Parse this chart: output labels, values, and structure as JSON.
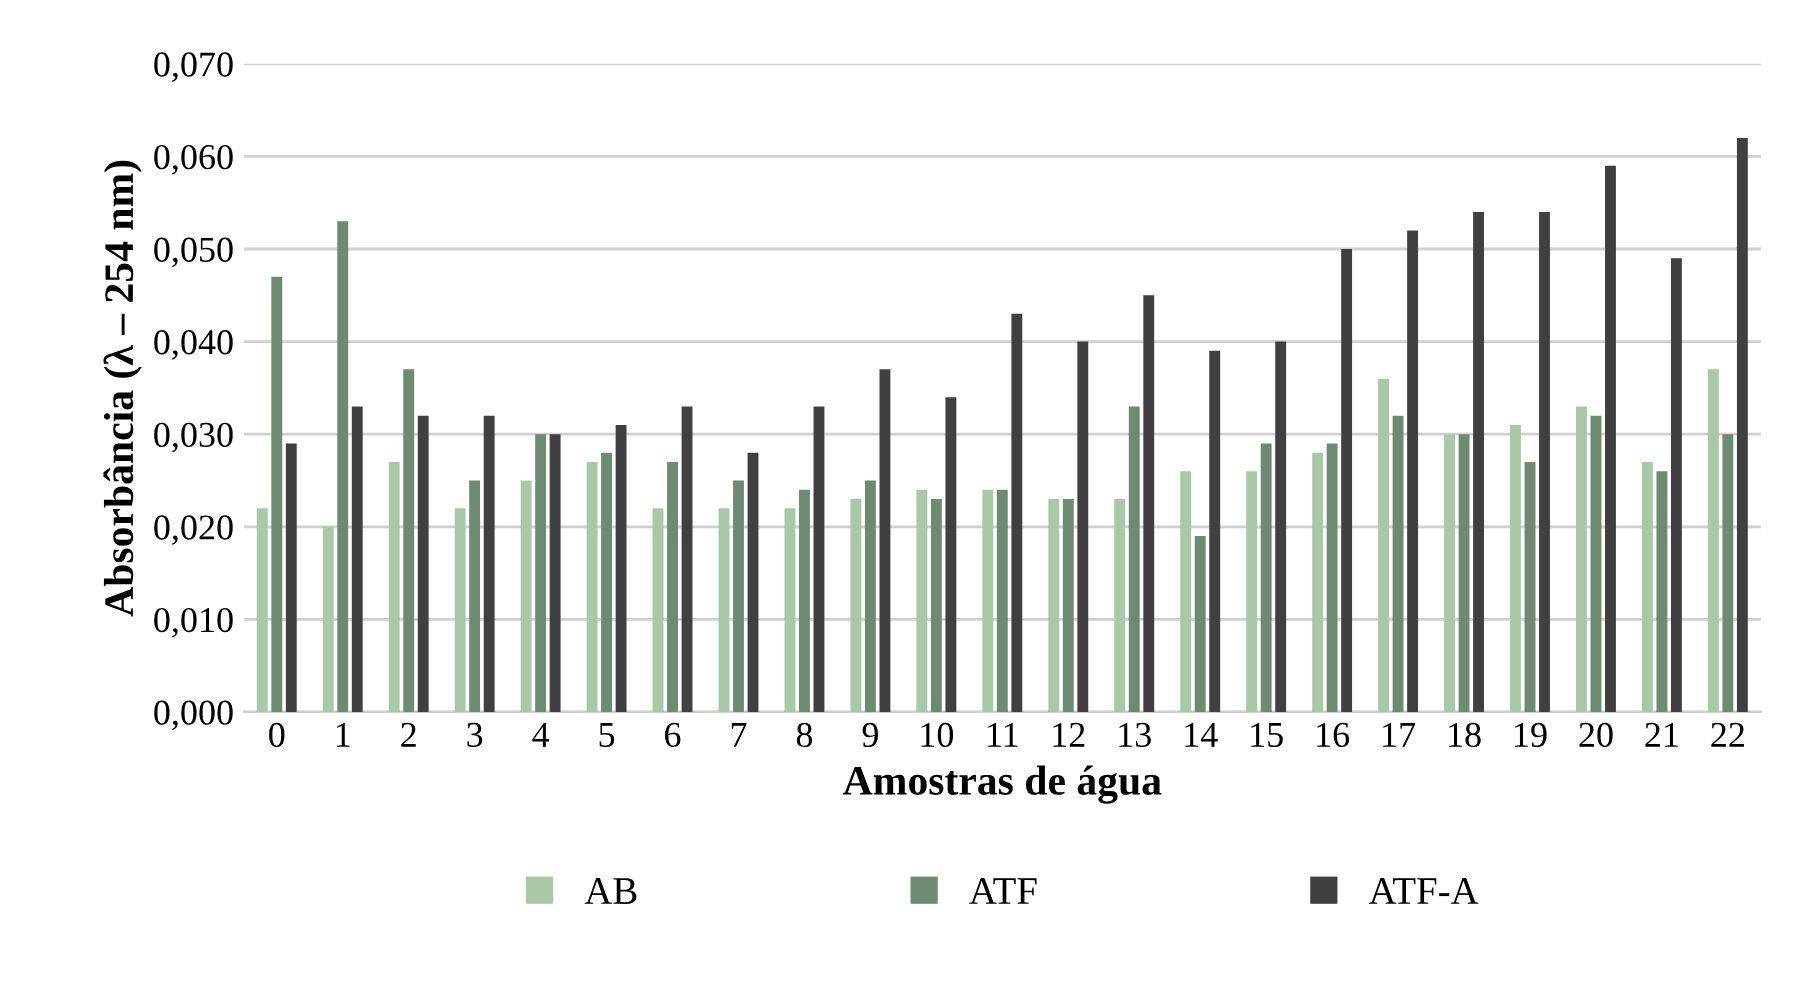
{
  "chart_data": {
    "type": "bar",
    "xlabel": "Amostras de água",
    "ylabel": "Absorbância (λ – 254 nm)",
    "categories": [
      "0",
      "1",
      "2",
      "3",
      "4",
      "5",
      "6",
      "7",
      "8",
      "9",
      "10",
      "11",
      "12",
      "13",
      "14",
      "15",
      "16",
      "17",
      "18",
      "19",
      "20",
      "21",
      "22"
    ],
    "series": [
      {
        "name": "AB",
        "color": "#a8c8a8",
        "values": [
          0.022,
          0.02,
          0.027,
          0.022,
          0.025,
          0.027,
          0.022,
          0.022,
          0.022,
          0.023,
          0.024,
          0.024,
          0.023,
          0.023,
          0.026,
          0.026,
          0.028,
          0.036,
          0.03,
          0.031,
          0.033,
          0.027,
          0.037
        ]
      },
      {
        "name": "ATF",
        "color": "#6e8a72",
        "values": [
          0.047,
          0.053,
          0.037,
          0.025,
          0.03,
          0.028,
          0.027,
          0.025,
          0.024,
          0.025,
          0.023,
          0.024,
          0.023,
          0.033,
          0.019,
          0.029,
          0.029,
          0.032,
          0.03,
          0.027,
          0.032,
          0.026,
          0.03
        ]
      },
      {
        "name": "ATF-A",
        "color": "#404040",
        "values": [
          0.029,
          0.033,
          0.032,
          0.032,
          0.03,
          0.031,
          0.033,
          0.028,
          0.033,
          0.037,
          0.034,
          0.043,
          0.04,
          0.045,
          0.039,
          0.04,
          0.05,
          0.052,
          0.054,
          0.054,
          0.059,
          0.049,
          0.062
        ]
      }
    ],
    "ylim": [
      0,
      0.07
    ],
    "yticks": [
      {
        "value": 0,
        "label": "0,000"
      },
      {
        "value": 0.01,
        "label": "0,010"
      },
      {
        "value": 0.02,
        "label": "0,020"
      },
      {
        "value": 0.03,
        "label": "0,030"
      },
      {
        "value": 0.04,
        "label": "0,040"
      },
      {
        "value": 0.05,
        "label": "0,050"
      },
      {
        "value": 0.06,
        "label": "0,060"
      },
      {
        "value": 0.07,
        "label": "0,070"
      }
    ],
    "grid": "y",
    "legend": "bottom"
  }
}
